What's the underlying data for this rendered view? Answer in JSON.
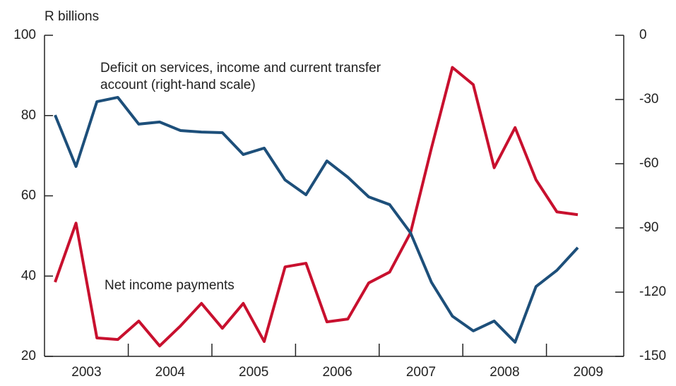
{
  "chart_data": {
    "type": "line",
    "y_label": "R billions",
    "annotations": [
      "Deficit on services, income and current transfer",
      "account (right-hand scale)",
      "Net income payments"
    ],
    "year_labels": [
      "2003",
      "2004",
      "2005",
      "2006",
      "2007",
      "2008",
      "2009"
    ],
    "ylim": [
      20,
      100
    ],
    "yticks": [
      20,
      40,
      60,
      80,
      100
    ],
    "y2lim": [
      -150,
      0
    ],
    "y2ticks": [
      -150,
      -120,
      -90,
      -60,
      -30,
      0
    ],
    "series": [
      {
        "name": "Net income payments",
        "color": "#c8102e",
        "values": [
          38.5,
          53.2,
          24.6,
          24.2,
          28.8,
          22.6,
          27.6,
          33.2,
          27,
          33.2,
          23.7,
          42.3,
          43.2,
          28.6,
          29.3,
          38.3,
          41,
          50.8,
          71.9,
          92,
          87.7,
          67,
          77,
          64,
          56,
          55.3
        ]
      },
      {
        "name": "Deficit on services, income and current transfer account",
        "color": "#1d4f7a",
        "axis": "y2",
        "values": [
          -37.3,
          -61.3,
          -31,
          -29,
          -41.5,
          -40.5,
          -44.5,
          -45.2,
          -45.5,
          -55.7,
          -52.7,
          -67.6,
          -74.5,
          -58.7,
          -66.3,
          -75.5,
          -79.1,
          -92.3,
          -115.4,
          -131.2,
          -138.1,
          -133.5,
          -143.4,
          -117.4,
          -109.8,
          -99.2
        ]
      }
    ]
  }
}
